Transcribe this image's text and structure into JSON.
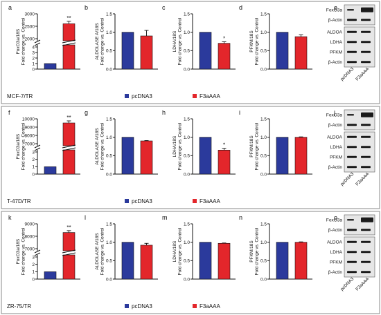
{
  "colors": {
    "pcDNA3": "#2b3a9c",
    "F3aAAA": "#e3262b",
    "band": "#1a1a1a",
    "blot_bg": "#e6e6e6"
  },
  "rows": [
    {
      "cell_line": "MCF-7/TR",
      "legend": [
        "pcDNA3",
        "F3aAAA"
      ],
      "blot": {
        "letter": "e",
        "groups": [
          [
            "FoxO3a",
            "β-Actin"
          ],
          [
            "ALDOA",
            "LDHA",
            "PFKM",
            "β-Actin"
          ]
        ],
        "lanes": [
          "pcDNA3",
          "F3aAAA"
        ]
      }
    },
    {
      "cell_line": "T-47D/TR",
      "legend": [
        "pcDNA3",
        "F3aAAA"
      ],
      "blot": {
        "letter": "j",
        "groups": [
          [
            "FoxO3a",
            "β-Actin"
          ],
          [
            "ALDOA",
            "LDHA",
            "PFKM",
            "β-Actin"
          ]
        ],
        "lanes": [
          "pcDNA3",
          "F3aAAA"
        ]
      }
    },
    {
      "cell_line": "ZR-75/TR",
      "legend": [
        "pcDNA3",
        "F3aAAA"
      ],
      "blot": {
        "letter": "o",
        "groups": [
          [
            "FoxO3a",
            "β-Actin"
          ],
          [
            "ALDOA",
            "LDHA",
            "PFKM",
            "β-Actin"
          ]
        ],
        "lanes": [
          "pcDNA3",
          "F3aAAA"
        ]
      }
    }
  ],
  "chart_data": [
    {
      "letter": "a",
      "type": "bar",
      "title": "",
      "ylabel": [
        "FoxO3a/18S",
        "Fold change vs. Control"
      ],
      "categories": [
        "pcDNA3",
        "F3aAAA"
      ],
      "values": [
        1,
        2600
      ],
      "errors": [
        0,
        100
      ],
      "broken_axis": true,
      "lower_ylim": [
        0,
        4
      ],
      "lower_ticks": [
        0,
        1,
        2,
        3,
        4
      ],
      "upper_ylim": [
        2000,
        3000
      ],
      "upper_ticks": [
        2000,
        2500,
        3000
      ],
      "significance": [
        "",
        "**"
      ]
    },
    {
      "letter": "b",
      "type": "bar",
      "title": "",
      "ylabel": [
        "ALDOLASE A/18S",
        "Fold change vs. Control"
      ],
      "categories": [
        "pcDNA3",
        "F3aAAA"
      ],
      "values": [
        1.0,
        0.9
      ],
      "errors": [
        0,
        0.15
      ],
      "ylim": [
        0,
        1.5
      ],
      "ticks": [
        "0.0",
        "0.5",
        "1.0",
        "1.5"
      ],
      "significance": [
        "",
        ""
      ]
    },
    {
      "letter": "c",
      "type": "bar",
      "title": "",
      "ylabel": [
        "LDHA/18S",
        "Fold change vs. Control"
      ],
      "categories": [
        "pcDNA3",
        "F3aAAA"
      ],
      "values": [
        1.0,
        0.7
      ],
      "errors": [
        0,
        0.04
      ],
      "ylim": [
        0,
        1.5
      ],
      "ticks": [
        "0.0",
        "0.5",
        "1.0",
        "1.5"
      ],
      "significance": [
        "",
        "*"
      ]
    },
    {
      "letter": "d",
      "type": "bar",
      "title": "",
      "ylabel": [
        "PFKM/18S",
        "Fold change vs. Control"
      ],
      "categories": [
        "pcDNA3",
        "F3aAAA"
      ],
      "values": [
        1.0,
        0.88
      ],
      "errors": [
        0,
        0.05
      ],
      "ylim": [
        0,
        1.5
      ],
      "ticks": [
        "0.0",
        "0.5",
        "1.0",
        "1.5"
      ],
      "significance": [
        "",
        ""
      ]
    },
    {
      "letter": "f",
      "type": "bar",
      "title": "",
      "ylabel": [
        "FoxO3a/18S",
        "Fold change vs. Control"
      ],
      "categories": [
        "pcDNA3",
        "F3aAAA"
      ],
      "values": [
        1,
        9500
      ],
      "errors": [
        0,
        250
      ],
      "broken_axis": true,
      "lower_ylim": [
        0,
        3
      ],
      "lower_ticks": [
        0,
        1,
        2,
        3
      ],
      "upper_ylim": [
        7000,
        10000
      ],
      "upper_ticks": [
        7000,
        8000,
        9000,
        10000
      ],
      "significance": [
        "",
        "**"
      ]
    },
    {
      "letter": "g",
      "type": "bar",
      "title": "",
      "ylabel": [
        "ALDOLASE A/18S",
        "Fold change vs. Control"
      ],
      "categories": [
        "pcDNA3",
        "F3aAAA"
      ],
      "values": [
        1.0,
        0.9
      ],
      "errors": [
        0,
        0.01
      ],
      "ylim": [
        0,
        1.5
      ],
      "ticks": [
        "0.0",
        "0.5",
        "1.0",
        "1.5"
      ],
      "significance": [
        "",
        ""
      ]
    },
    {
      "letter": "h",
      "type": "bar",
      "title": "",
      "ylabel": [
        "LDHA/18S",
        "Fold change vs. Control"
      ],
      "categories": [
        "pcDNA3",
        "F3aAAA"
      ],
      "values": [
        1.0,
        0.65
      ],
      "errors": [
        0,
        0.05
      ],
      "ylim": [
        0,
        1.5
      ],
      "ticks": [
        "0.0",
        "0.5",
        "1.0",
        "1.5"
      ],
      "significance": [
        "",
        "*"
      ]
    },
    {
      "letter": "i",
      "type": "bar",
      "title": "",
      "ylabel": [
        "PFKM/18S",
        "Fold change vs. Control"
      ],
      "categories": [
        "pcDNA3",
        "F3aAAA"
      ],
      "values": [
        1.0,
        1.0
      ],
      "errors": [
        0,
        0.01
      ],
      "ylim": [
        0,
        1.5
      ],
      "ticks": [
        "0.0",
        "0.5",
        "1.0",
        "1.5"
      ],
      "significance": [
        "",
        ""
      ]
    },
    {
      "letter": "k",
      "type": "bar",
      "title": "",
      "ylabel": [
        "FoxO3a/18S",
        "Fold change vs. Control"
      ],
      "categories": [
        "pcDNA3",
        "F3aAAA"
      ],
      "values": [
        1,
        8300
      ],
      "errors": [
        0,
        150
      ],
      "broken_axis": true,
      "lower_ylim": [
        0,
        3
      ],
      "lower_ticks": [
        0,
        1,
        2,
        3
      ],
      "upper_ylim": [
        7000,
        9000
      ],
      "upper_ticks": [
        7000,
        8000,
        9000
      ],
      "significance": [
        "",
        "**"
      ]
    },
    {
      "letter": "l",
      "type": "bar",
      "title": "",
      "ylabel": [
        "ALDOLASE A/18S",
        "Fold change vs. Control"
      ],
      "categories": [
        "pcDNA3",
        "F3aAAA"
      ],
      "values": [
        1.0,
        0.92
      ],
      "errors": [
        0,
        0.05
      ],
      "ylim": [
        0,
        1.5
      ],
      "ticks": [
        "0.0",
        "0.5",
        "1.0",
        "1.5"
      ],
      "significance": [
        "",
        ""
      ]
    },
    {
      "letter": "m",
      "type": "bar",
      "title": "",
      "ylabel": [
        "LDHA/18S",
        "Fold change vs. Control"
      ],
      "categories": [
        "pcDNA3",
        "F3aAAA"
      ],
      "values": [
        1.0,
        0.97
      ],
      "errors": [
        0,
        0.01
      ],
      "ylim": [
        0,
        1.5
      ],
      "ticks": [
        "0.0",
        "0.5",
        "1.0",
        "1.5"
      ],
      "significance": [
        "",
        ""
      ]
    },
    {
      "letter": "n",
      "type": "bar",
      "title": "",
      "ylabel": [
        "PFKM/18S",
        "Fold change vs. Control"
      ],
      "categories": [
        "pcDNA3",
        "F3aAAA"
      ],
      "values": [
        1.0,
        1.0
      ],
      "errors": [
        0,
        0.01
      ],
      "ylim": [
        0,
        1.5
      ],
      "ticks": [
        "0.0",
        "0.5",
        "1.0",
        "1.5"
      ],
      "significance": [
        "",
        ""
      ]
    }
  ]
}
